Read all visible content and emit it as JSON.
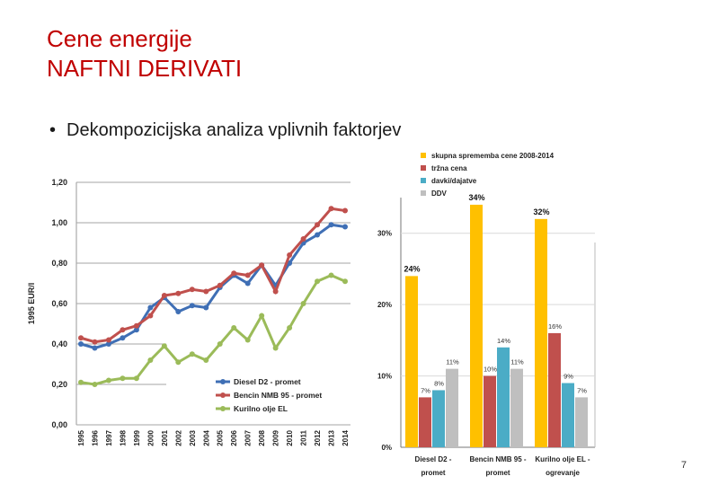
{
  "slide": {
    "title_line1": "Cene energije",
    "title_line2": "NAFTNI DERIVATI",
    "bullet": "Dekompozicijska analiza vplivnih faktorjev",
    "page_number": "7"
  },
  "chart_data": [
    {
      "type": "line",
      "ylabel": "1995 EUR/l",
      "ylim": [
        0,
        1.2
      ],
      "y_ticks": [
        "0,00",
        "0,20",
        "0,40",
        "0,60",
        "0,80",
        "1,00",
        "1,20"
      ],
      "x": [
        "1995",
        "1996",
        "1997",
        "1998",
        "1999",
        "2000",
        "2001",
        "2002",
        "2003",
        "2004",
        "2005",
        "2006",
        "2007",
        "2008",
        "2009",
        "2010",
        "2011",
        "2012",
        "2013",
        "2014"
      ],
      "legend_position": "bottom-right",
      "series": [
        {
          "name": "Diesel D2 - promet",
          "color": "#3f6fb5",
          "values": [
            0.4,
            0.38,
            0.4,
            0.43,
            0.47,
            0.58,
            0.63,
            0.56,
            0.59,
            0.58,
            0.68,
            0.74,
            0.7,
            0.79,
            0.69,
            0.8,
            0.9,
            0.94,
            0.99,
            0.98
          ]
        },
        {
          "name": "Bencin NMB 95 - promet",
          "color": "#c0504d",
          "values": [
            0.43,
            0.41,
            0.42,
            0.47,
            0.49,
            0.54,
            0.64,
            0.65,
            0.67,
            0.66,
            0.69,
            0.75,
            0.74,
            0.79,
            0.66,
            0.84,
            0.92,
            0.99,
            1.07,
            1.06
          ]
        },
        {
          "name": "Kurilno olje EL",
          "color": "#9bbb59",
          "values": [
            0.21,
            0.2,
            0.22,
            0.23,
            0.23,
            0.32,
            0.39,
            0.31,
            0.35,
            0.32,
            0.4,
            0.48,
            0.42,
            0.54,
            0.38,
            0.48,
            0.6,
            0.71,
            0.74,
            0.71
          ]
        }
      ]
    },
    {
      "type": "bar",
      "ylim": [
        0,
        0.35
      ],
      "y_ticks": [
        "0%",
        "10%",
        "20%",
        "30%"
      ],
      "categories": [
        "Diesel D2 - promet",
        "Bencin NMB 95 - promet",
        "Kurilno olje EL - ogrevanje"
      ],
      "legend_position": "top",
      "series": [
        {
          "name": "skupna sprememba cene 2008-2014",
          "color": "#ffc000",
          "values": [
            0.24,
            0.34,
            0.32
          ],
          "labels": [
            "24%",
            "34%",
            "32%"
          ]
        },
        {
          "name": "tržna cena",
          "color": "#c0504d",
          "values": [
            0.07,
            0.1,
            0.16
          ],
          "labels": [
            "7%",
            "10%",
            "16%"
          ]
        },
        {
          "name": "davki/dajatve",
          "color": "#4bacc6",
          "values": [
            0.08,
            0.14,
            0.09
          ],
          "labels": [
            "8%",
            "14%",
            "9%"
          ]
        },
        {
          "name": "DDV",
          "color": "#bfbfbf",
          "values": [
            0.11,
            0.11,
            0.07
          ],
          "labels": [
            "11%",
            "11%",
            "7%"
          ]
        }
      ]
    }
  ]
}
